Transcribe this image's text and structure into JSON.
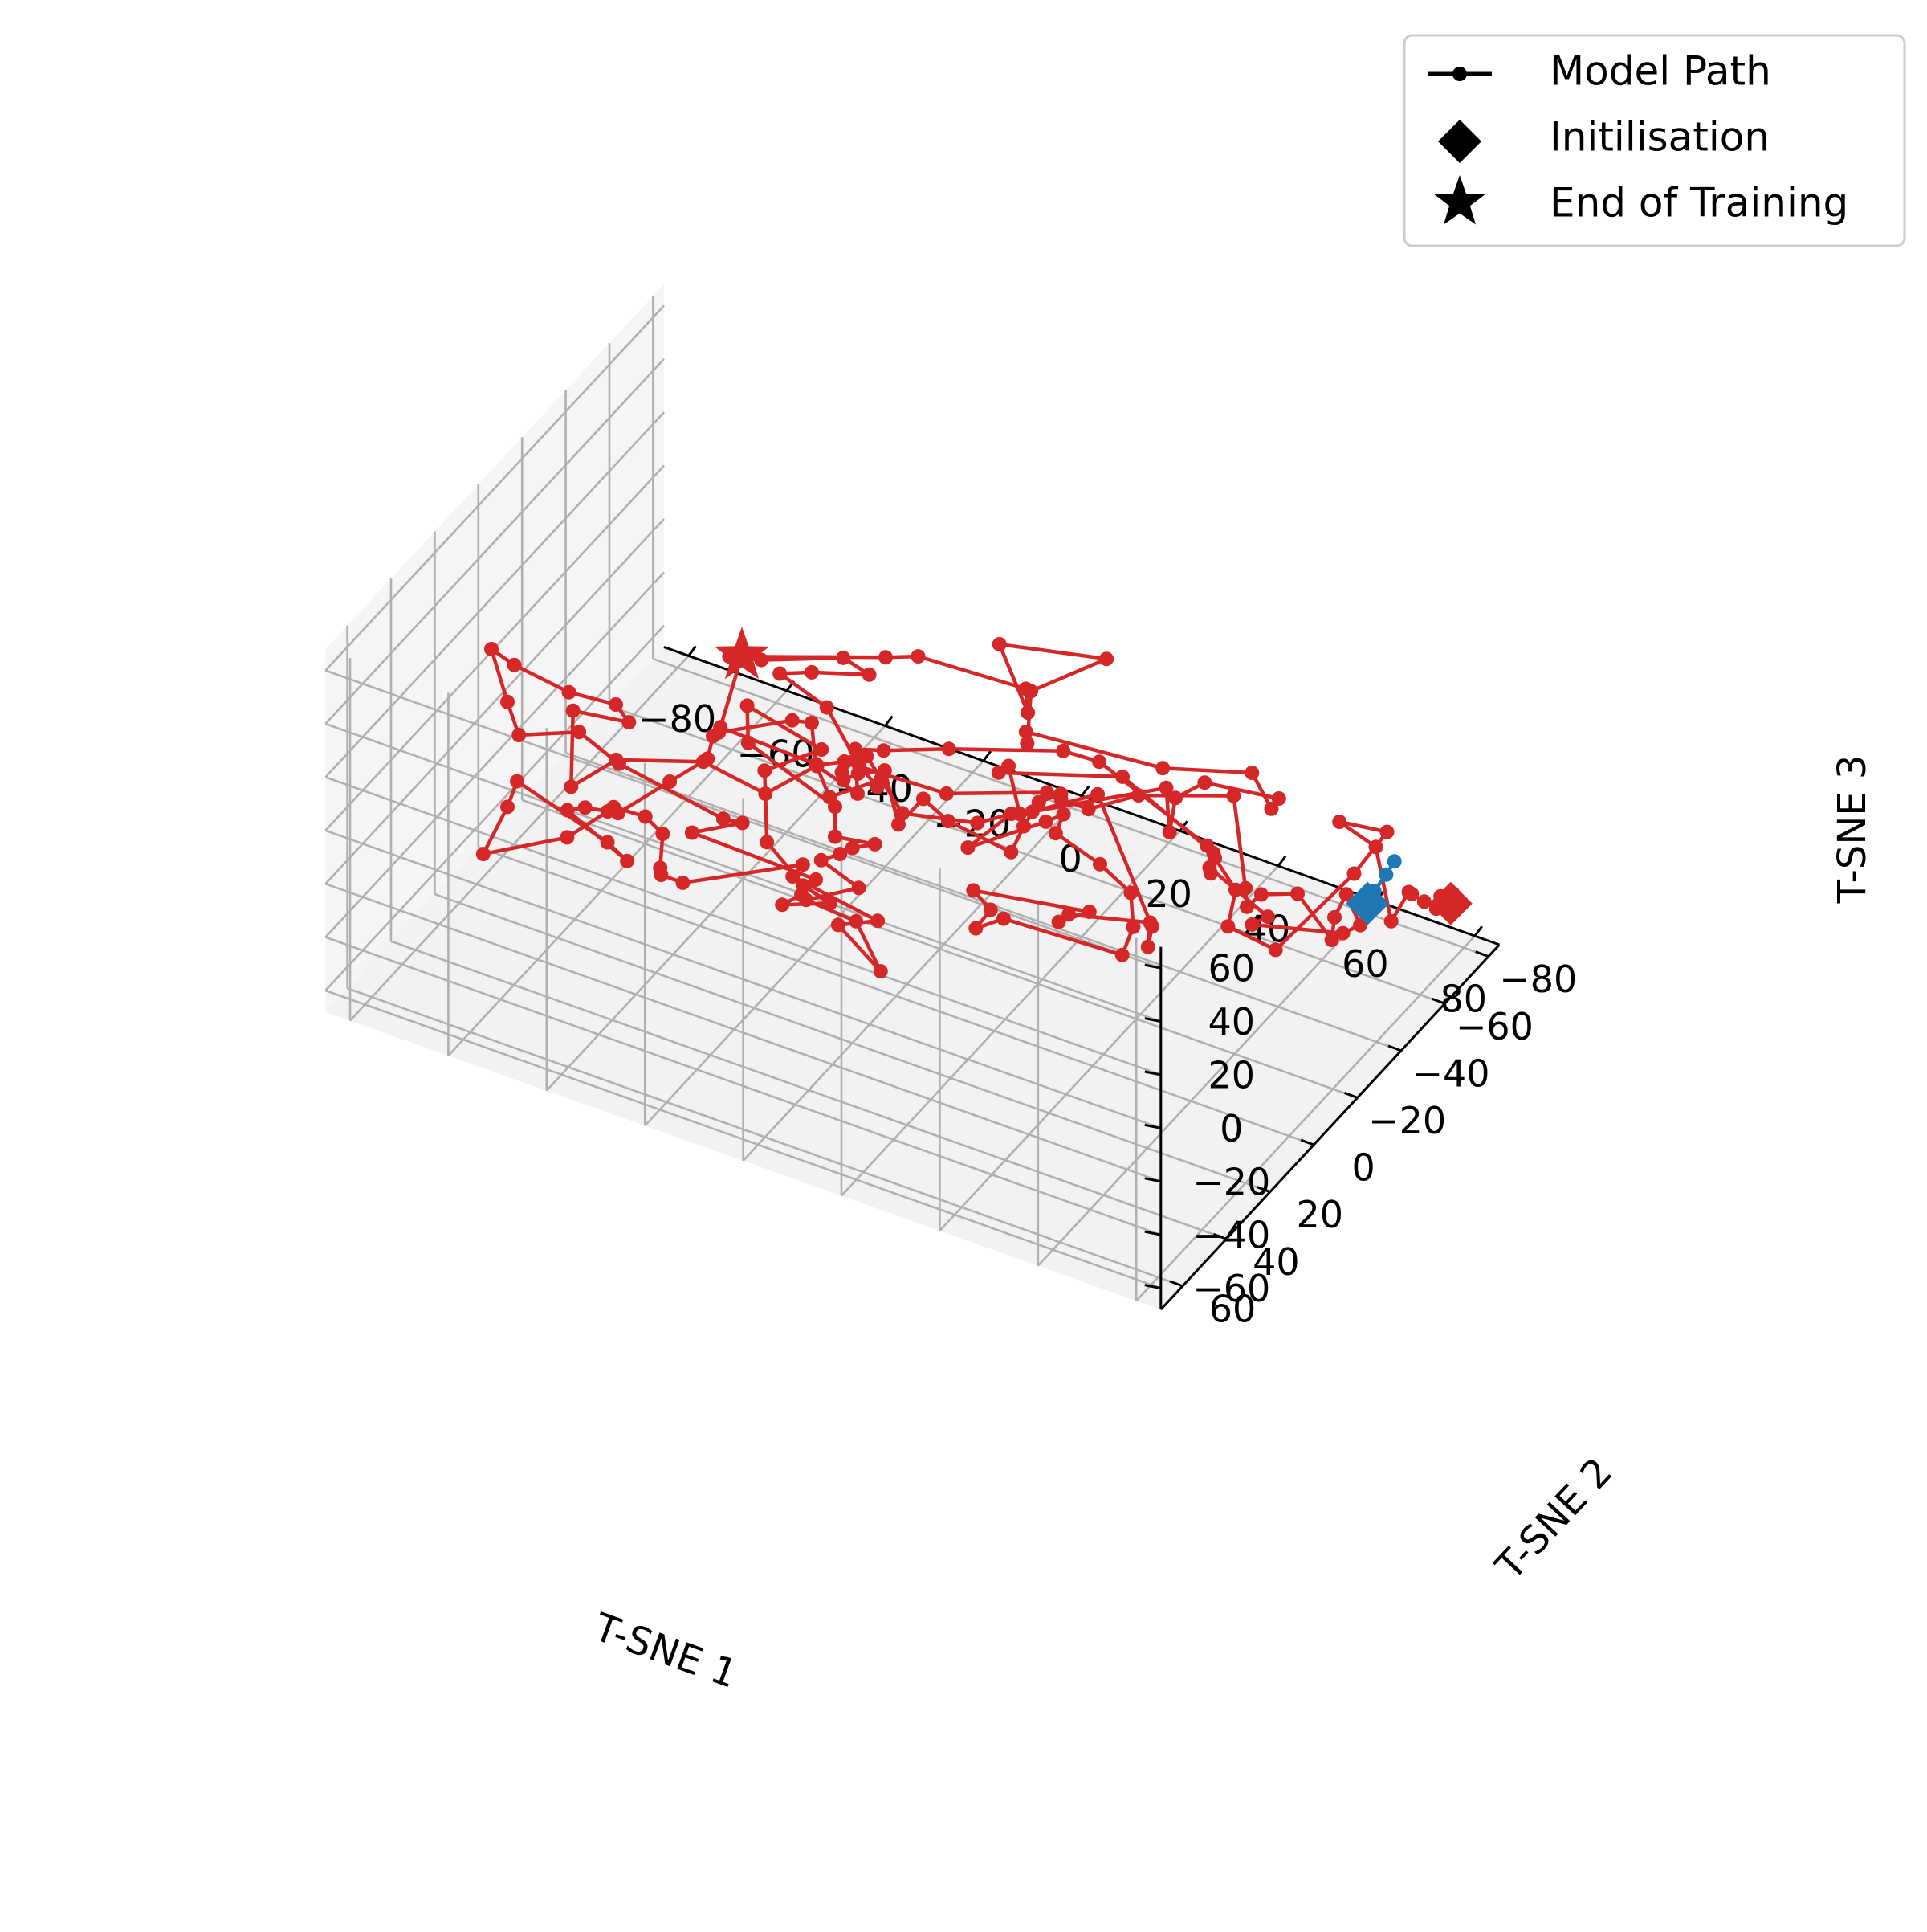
{
  "chart_data": {
    "type": "line",
    "dimensions": 3,
    "title": "",
    "xlabel": "T-SNE 1",
    "ylabel": "T-SNE 2",
    "zlabel": "T-SNE 3",
    "x_ticks": [
      "−80",
      "−60",
      "−40",
      "−20",
      "0",
      "20",
      "40",
      "60",
      "80"
    ],
    "y_ticks": [
      "−80",
      "−60",
      "−40",
      "−20",
      "0",
      "20",
      "40",
      "60"
    ],
    "z_ticks": [
      "−60",
      "−40",
      "−20",
      "0",
      "20",
      "40",
      "60"
    ],
    "xlim": [
      -85,
      85
    ],
    "ylim": [
      -85,
      70
    ],
    "zlim": [
      -68,
      68
    ],
    "grid": true,
    "legend": {
      "position": "top-right",
      "entries": [
        {
          "label": "Model Path",
          "symbol": "line-dot",
          "color": "#000000"
        },
        {
          "label": "Initilisation",
          "symbol": "diamond",
          "color": "#000000"
        },
        {
          "label": "End of Training",
          "symbol": "star",
          "color": "#000000"
        }
      ]
    },
    "series": [
      {
        "role": "main-path",
        "color": "#d62728",
        "x": [
          -30.4,
          -26.2,
          -6.2,
          -9.8,
          -14.9,
          -26.9,
          -26.9,
          -26.5,
          -31.3,
          -36.7,
          -43.9,
          -49.6,
          -36.1,
          -32.6,
          -54.8,
          -57.3,
          -60.2,
          -45.5,
          -37.9,
          -36.5,
          -29.2,
          -24.2,
          -23.3,
          -24.6,
          -19.8,
          3.2,
          3.8,
          19.5,
          14.8,
          20.1,
          12.6,
          2.7,
          12.8,
          4.4,
          9.7,
          10.7,
          14.4,
          5.3,
          3.9,
          -17.7,
          -20.7,
          -4.8,
          -15.1,
          -11.3,
          -3.5,
          3.5,
          -2.9,
          -0.6,
          3.3,
          -20.5,
          -13.0,
          -15.6,
          -33.1,
          -40.8,
          -54.9,
          -63.3,
          -73.6,
          -74.1,
          -62.1,
          -52.5,
          -51.6,
          -61.6,
          -53.6,
          -47.3,
          -31.5,
          -19.3,
          -14.4,
          -9.9,
          -4.6,
          7.3,
          20.6,
          27.8,
          22.2,
          35.2,
          37.9,
          38.5,
          48.0,
          54.8,
          56.8,
          47.9,
          27.4,
          20.8,
          18.9,
          15.2,
          39.7,
          36.4,
          33.1,
          47.0,
          50.6,
          50.5,
          33.6,
          25.2,
          26.5,
          6.4,
          -10.0,
          -20.8,
          -30.6,
          -28.8,
          -17.9,
          -24.8,
          -37.7,
          -44.1,
          -23.9,
          -13.5,
          7.3,
          10.1,
          -0.8,
          16.6,
          7.6,
          10.7,
          8.4,
          30.2,
          47.9,
          53.1,
          51.2,
          39.3,
          35.8,
          35.4,
          29.7,
          9.1,
          1.3,
          3.2,
          25.6,
          45.8,
          44.6,
          24.6,
          19.0,
          0.3,
          -12.6,
          -18.0,
          -15.0,
          -25.4,
          -15.5,
          -6.2,
          -4.3,
          -5.9,
          -6.5,
          -3.2,
          0.1,
          4.3,
          5.6,
          7.0,
          13.1,
          29.6,
          28.6,
          33.1,
          36.4,
          36.0,
          38.5,
          45.5,
          61.9,
          65.6,
          65.8,
          65.3,
          72.1,
          74.3,
          72.5,
          69.8,
          73.7,
          73.3,
          63.2,
          64.7,
          54.5,
          56.4,
          51.5,
          58.3,
          57.6,
          69.9,
          79.8,
          81.6,
          73.3,
          82.7,
          86.1,
          83.1,
          82.5,
          85.7,
          87.0,
          87.3,
          86.3,
          85.0,
          87.0,
          88.0,
          87.5
        ],
        "y": [
          2.2,
          21.5,
          22.9,
          16.6,
          14.0,
          20.6,
          23.3,
          26.7,
          33.2,
          44.7,
          43.6,
          38.9,
          41.9,
          58.8,
          50.2,
          49.0,
          53.6,
          48.2,
          46.8,
          47.2,
          49.1,
          52.4,
          55.6,
          52.2,
          53.1,
          49.9,
          55.9,
          52.3,
          59.8,
          52.3,
          46.7,
          47.3,
          45.9,
          44.2,
          47.5,
          44.0,
          42.1,
          39.9,
          36.7,
          27.9,
          21.6,
          23.3,
          26.2,
          33.7,
          34.6,
          38.1,
          45.6,
          42.0,
          44.2,
          47.3,
          41.1,
          44.0,
          52.4,
          53.4,
          49.2,
          35.5,
          19.7,
          8.1,
          10.1,
          10.2,
          6.2,
          9.3,
          28.2,
          21.7,
          17.4,
          16.4,
          3.7,
          1.4,
          3.1,
          13.5,
          9.1,
          9.8,
          17.1,
          10.6,
          8.6,
          13.5,
          14.6,
          15.8,
          19.2,
          4.2,
          12.4,
          10.3,
          -0.8,
          -1.2,
          0.8,
          7.4,
          -4.6,
          -10.6,
          -1.5,
          -3.6,
          -16.7,
          -5.7,
          -9.5,
          -8.7,
          -5.7,
          -15.1,
          -15.6,
          -26.2,
          -28.0,
          -31.6,
          -23.1,
          -22.9,
          -49.0,
          -40.5,
          -43.0,
          -37.6,
          -49.1,
          -59.0,
          -44.7,
          -36.0,
          -40.6,
          -54.2,
          -55.2,
          -52.4,
          -60.1,
          -52.9,
          -47.4,
          -45.6,
          -56.9,
          -36.1,
          -48.6,
          -39.8,
          -46.1,
          -42.3,
          -42.0,
          -37.7,
          -33.8,
          -23.5,
          -22.7,
          -21.8,
          -16.1,
          -20.8,
          -4.4,
          -6.9,
          -1.1,
          5.6,
          10.2,
          16.9,
          17.6,
          14.9,
          11.5,
          3.3,
          5.6,
          13.9,
          5.9,
          9.1,
          6.4,
          5.4,
          -1.5,
          -8.6,
          -15.3,
          -12.4,
          -12.6,
          -20.3,
          -21.6,
          -32.3,
          -37.6,
          -49.1,
          -46.7,
          -39.7,
          -20.8,
          -24.6,
          -20.9,
          -17.2,
          -30.1,
          -24.3,
          -22.4,
          -16.5,
          -30.2,
          -41.2,
          -38.1,
          -33.6,
          -33.0,
          -47.8,
          -50.5,
          -49.0,
          -51.6,
          -58.0,
          -60.6,
          -58.1,
          -55.5,
          -57.5,
          -57.1
        ],
        "z": [
          41.6,
          34.5,
          35.1,
          42.6,
          37.9,
          31.3,
          32.3,
          27.1,
          21.1,
          15.9,
          12.3,
          3.4,
          -4.1,
          20.1,
          20.8,
          8.5,
          -7.0,
          4.1,
          17.6,
          20.5,
          23.4,
          23.1,
          13.8,
          7.3,
          8.3,
          27.4,
          28.6,
          19.1,
          21.1,
          0.6,
          9.5,
          11.5,
          21.4,
          24.8,
          33.5,
          33.4,
          35.5,
          30.4,
          37.9,
          39.9,
          46.3,
          41.8,
          29.7,
          12.0,
          1.6,
          2.7,
          4.5,
          6.6,
          16.8,
          21.5,
          24.6,
          27.0,
          43.6,
          51.3,
          37.2,
          32.0,
          31.1,
          14.6,
          14.0,
          15.8,
          6.2,
          6.7,
          0.1,
          8.6,
          14.5,
          9.6,
          12.3,
          14.6,
          21.6,
          17.2,
          18.4,
          27.2,
          17.3,
          29.8,
          32.6,
          30.2,
          25.8,
          20.6,
          12.1,
          -17.5,
          -10.1,
          -19.9,
          -24.0,
          -19.5,
          -9.7,
          -9.8,
          -19.8,
          -19.0,
          -17.7,
          -12.0,
          14.9,
          12.6,
          17.3,
          4.4,
          6.4,
          13.2,
          19.0,
          11.3,
          16.0,
          14.6,
          12.8,
          10.1,
          -0.0,
          14.7,
          14.0,
          11.7,
          20.0,
          17.2,
          11.8,
          1.9,
          0.7,
          -10.6,
          -1.6,
          -9.2,
          -13.4,
          -8.9,
          -12.1,
          -23.6,
          -20.7,
          -25.6,
          -23.8,
          -17.3,
          -9.7,
          -21.7,
          -19.4,
          2.7,
          6.5,
          4.1,
          -4.3,
          -6.5,
          -16.2,
          -16.8,
          -7.5,
          2.9,
          6.6,
          21.4,
          20.6,
          25.7,
          31.0,
          32.5,
          10.1,
          13.4,
          11.1,
          17.6,
          19.6,
          34.4,
          37.3,
          34.1,
          26.0,
          29.5,
          34.2,
          4.5,
          -2.5,
          -5.0,
          -1.4,
          -26.7,
          -24.1,
          -27.4,
          -34.3,
          -31.4,
          -18.1,
          -17.5,
          -2.5,
          -0.2,
          -9.0,
          -11.4,
          -23.9,
          -19.4,
          3.6,
          10.7,
          11.8,
          12.5,
          -12.6,
          -16.7,
          -20.2,
          -19.6,
          -23.7,
          -23.4,
          -26.2,
          -26.1,
          -26.3,
          -26.3,
          -26.3
        ]
      },
      {
        "role": "initial-segment",
        "color": "#1f77b4",
        "x": [
          75.6,
          75.6,
          74.8,
          75.1,
          74.8
        ],
        "y": [
          -58.1,
          -54.3,
          -50.7,
          -48.2,
          -47.6
        ],
        "z": [
          -19.2,
          -20.8,
          -24.3,
          -25.8,
          -26.2
        ]
      },
      {
        "role": "initialisation-marker",
        "symbol": "diamond",
        "color": "#1f77b4",
        "x": [
          74.8
        ],
        "y": [
          -47.6
        ],
        "z": [
          -26.2
        ]
      },
      {
        "role": "initialisation-marker",
        "symbol": "diamond",
        "color": "#d62728",
        "x": [
          87.5
        ],
        "y": [
          -57.1
        ],
        "z": [
          -26.3
        ]
      },
      {
        "role": "end-of-training-marker",
        "symbol": "star",
        "color": "#d62728",
        "x": [
          -30.4
        ],
        "y": [
          2.2
        ],
        "z": [
          41.6
        ]
      }
    ]
  }
}
